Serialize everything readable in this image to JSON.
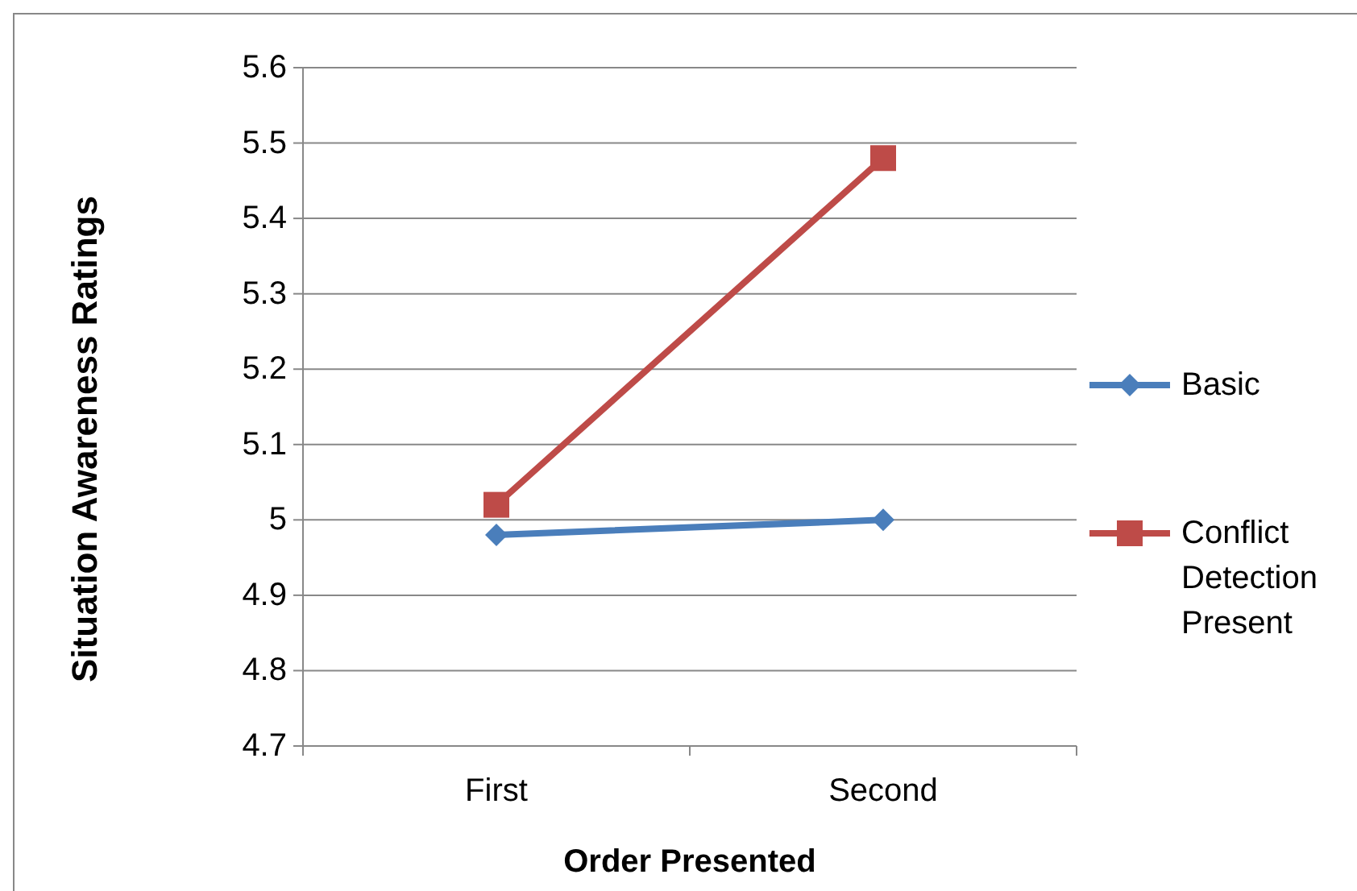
{
  "chart_data": {
    "type": "line",
    "xlabel": "Order Presented",
    "ylabel": "Situation Awareness Ratings",
    "categories": [
      "First",
      "Second"
    ],
    "series": [
      {
        "name": "Basic",
        "color": "#4a7ebb",
        "marker": "diamond",
        "values": [
          4.98,
          5.0
        ]
      },
      {
        "name": "Conflict Detection Present",
        "color": "#be4b48",
        "marker": "square",
        "values": [
          5.02,
          5.48
        ]
      }
    ],
    "ylim": [
      4.7,
      5.6
    ],
    "yticks": [
      4.7,
      4.8,
      4.9,
      5,
      5.1,
      5.2,
      5.3,
      5.4,
      5.5,
      5.6
    ],
    "grid": "y",
    "legend": "right"
  }
}
